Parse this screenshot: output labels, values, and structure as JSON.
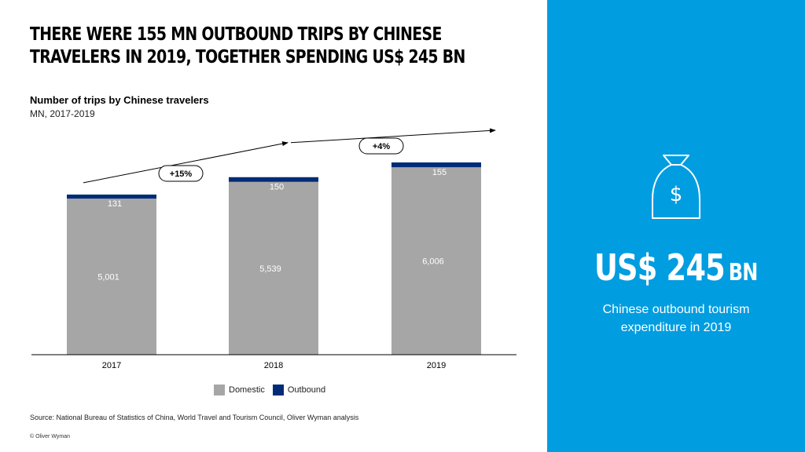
{
  "headline": {
    "line1": "THERE WERE 155 MN OUTBOUND TRIPS BY CHINESE",
    "line2": "TRAVELERS IN 2019, TOGETHER SPENDING US$ 245 BN"
  },
  "chart_data": {
    "type": "bar",
    "stacked": true,
    "title": "Number of trips by Chinese travelers",
    "subtitle": "MN, 2017-2019",
    "categories": [
      "2017",
      "2018",
      "2019"
    ],
    "series": [
      {
        "name": "Domestic",
        "values": [
          5001,
          5539,
          6006
        ],
        "labels": [
          "5,001",
          "5,539",
          "6,006"
        ],
        "color": "#a6a6a6"
      },
      {
        "name": "Outbound",
        "values": [
          131,
          150,
          155
        ],
        "labels": [
          "131",
          "150",
          "155"
        ],
        "color": "#002c77"
      }
    ],
    "annotations": [
      {
        "text": "+15%",
        "from": "2017",
        "to": "2018"
      },
      {
        "text": "+4%",
        "from": "2018",
        "to": "2019"
      }
    ],
    "legend_position": "bottom",
    "grid": false
  },
  "source": "Source: National Bureau of Statistics of China, World Travel and Tourism Council, Oliver Wyman analysis",
  "copyright": "© Oliver Wyman",
  "side_panel": {
    "background": "#009de0",
    "icon": "money-bag-dollar-icon",
    "amount": "US$ 245",
    "unit": "BN",
    "caption_line1": "Chinese outbound tourism",
    "caption_line2": "expenditure in 2019"
  }
}
